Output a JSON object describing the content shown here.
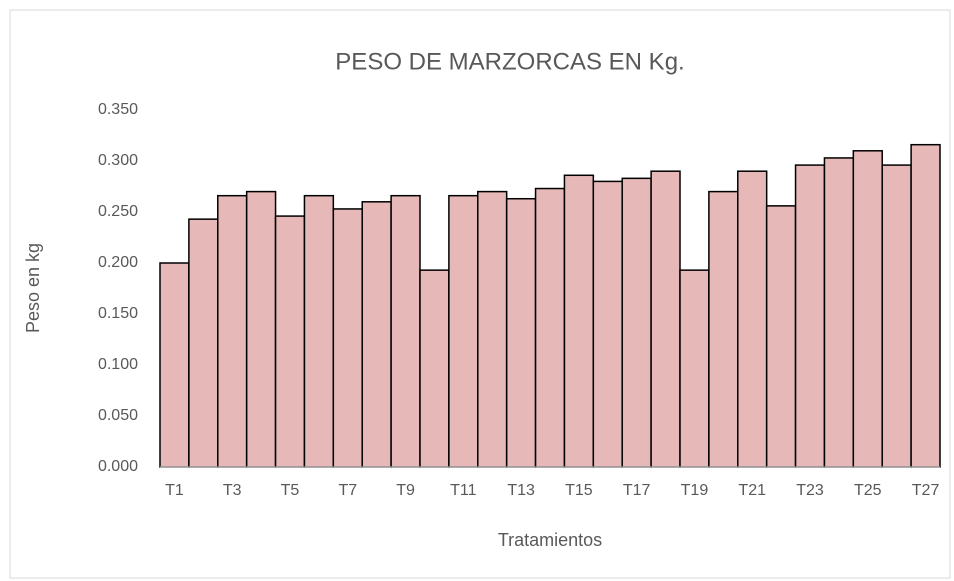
{
  "chart_data": {
    "type": "bar",
    "title": "PESO DE MARZORCAS EN Kg.",
    "x_label": "Tratamientos",
    "y_label": "Peso en kg",
    "categories": [
      "T1",
      null,
      "T3",
      null,
      "T5",
      null,
      "T7",
      null,
      "T9",
      null,
      "T11",
      null,
      "T13",
      null,
      "T15",
      null,
      "T17",
      null,
      "T19",
      null,
      "T21",
      null,
      "T23",
      null,
      "T25",
      null,
      "T27"
    ],
    "values": [
      0.2,
      0.243,
      0.266,
      0.27,
      0.246,
      0.266,
      0.253,
      0.26,
      0.266,
      0.193,
      0.266,
      0.27,
      0.263,
      0.273,
      0.286,
      0.28,
      0.283,
      0.29,
      0.193,
      0.27,
      0.29,
      0.256,
      0.296,
      0.303,
      0.31,
      0.296,
      0.316
    ],
    "color": "#e6b8b7",
    "ylim": [
      0,
      0.35
    ],
    "yticks": [
      {
        "value": 0,
        "label": "0.000"
      },
      {
        "value": 0.05,
        "label": "0.050"
      },
      {
        "value": 0.1,
        "label": "0.100"
      },
      {
        "value": 0.15,
        "label": "0.150"
      },
      {
        "value": 0.2,
        "label": "0.200"
      },
      {
        "value": 0.25,
        "label": "0.250"
      },
      {
        "value": 0.3,
        "label": "0.300"
      },
      {
        "value": 0.35,
        "label": "0.350"
      }
    ],
    "grid": false
  }
}
